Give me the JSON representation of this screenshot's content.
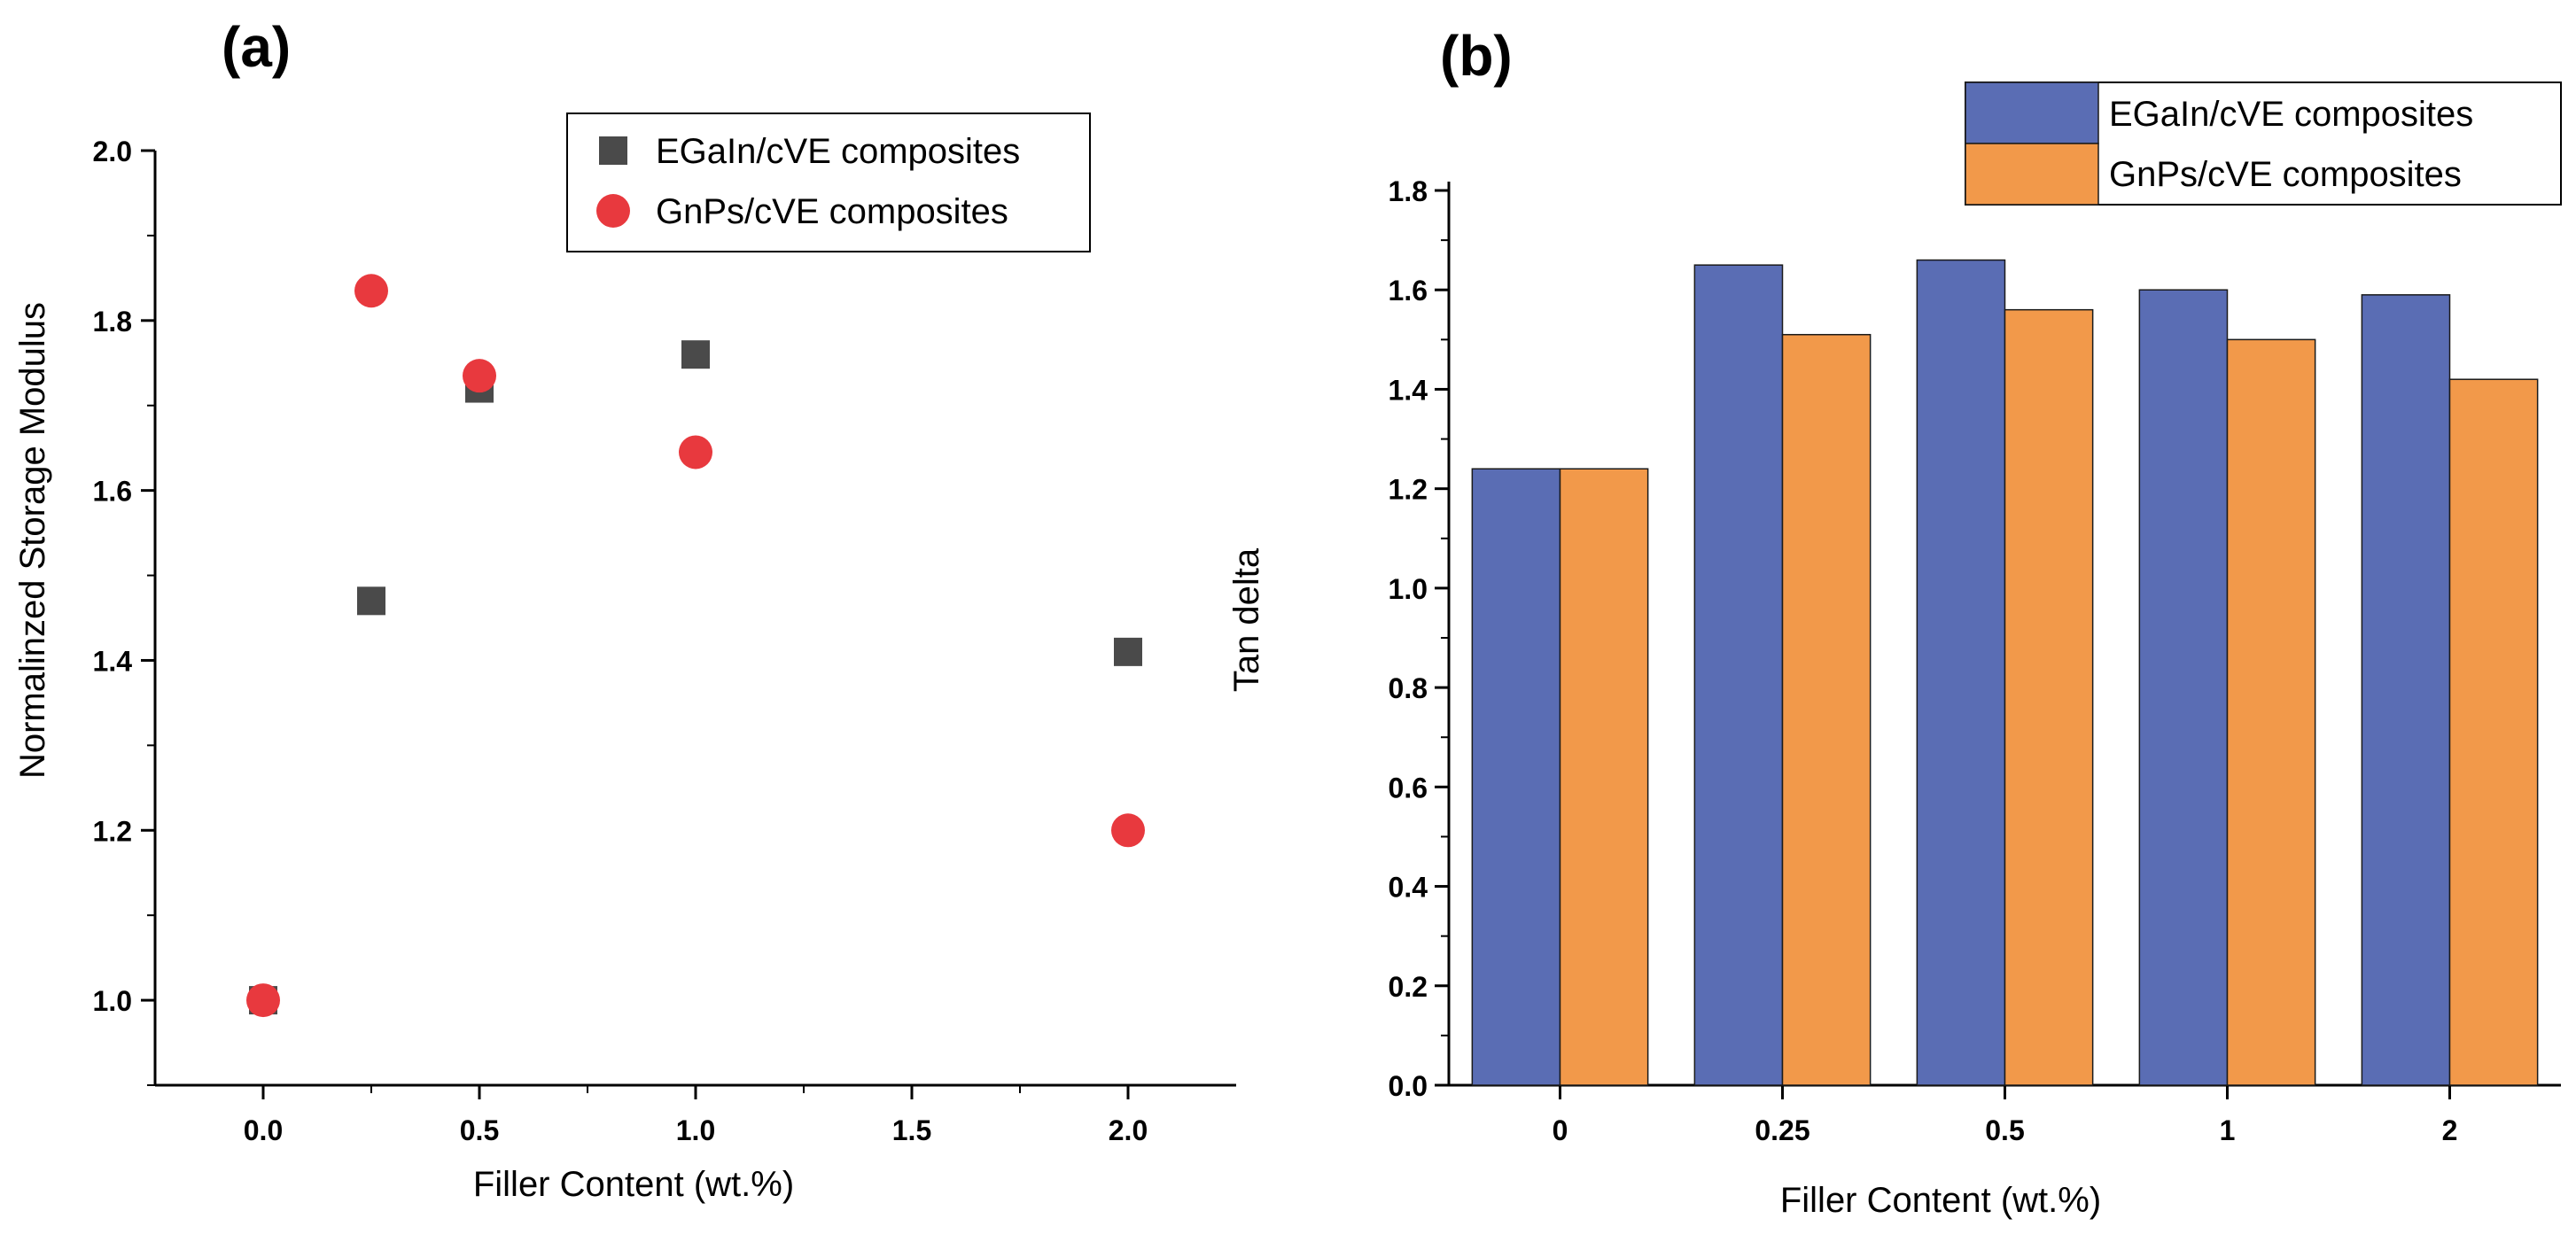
{
  "chart_data": [
    {
      "panel_label": "(a)",
      "type": "scatter",
      "xlabel": "Filler Content (wt.%)",
      "ylabel": "Normalinzed Storage Modulus",
      "xlim": [
        -0.25,
        2.25
      ],
      "ylim": [
        0.9,
        2.0
      ],
      "xticks": [
        0.0,
        0.5,
        1.0,
        1.5,
        2.0
      ],
      "xtick_labels": [
        "0.0",
        "0.5",
        "1.0",
        "1.5",
        "2.0"
      ],
      "yticks": [
        1.0,
        1.2,
        1.4,
        1.6,
        1.8,
        2.0
      ],
      "ytick_labels": [
        "1.0",
        "1.2",
        "1.4",
        "1.6",
        "1.8",
        "2.0"
      ],
      "legend_position": "top-right",
      "series": [
        {
          "name": "EGaIn/cVE composites",
          "marker": "square",
          "color": "#4a4a4a",
          "x": [
            0.0,
            0.25,
            0.5,
            1.0,
            2.0
          ],
          "y": [
            1.0,
            1.47,
            1.72,
            1.76,
            1.41
          ]
        },
        {
          "name": "GnPs/cVE composites",
          "marker": "circle",
          "color": "#e8393e",
          "x": [
            0.0,
            0.25,
            0.5,
            1.0,
            2.0
          ],
          "y": [
            1.0,
            1.835,
            1.735,
            1.645,
            1.2
          ]
        }
      ]
    },
    {
      "panel_label": "(b)",
      "type": "bar",
      "xlabel": "Filler Content (wt.%)",
      "ylabel": "Tan delta",
      "categories": [
        "0",
        "0.25",
        "0.5",
        "1",
        "2"
      ],
      "ylim": [
        0.0,
        1.8
      ],
      "yticks": [
        0.0,
        0.2,
        0.4,
        0.6,
        0.8,
        1.0,
        1.2,
        1.4,
        1.6,
        1.8
      ],
      "ytick_labels": [
        "0.0",
        "0.2",
        "0.4",
        "0.6",
        "0.8",
        "1.0",
        "1.2",
        "1.4",
        "1.6",
        "1.8"
      ],
      "legend_position": "top-right",
      "series": [
        {
          "name": "EGaIn/cVE composites",
          "color": "#5a6db4",
          "values": [
            1.24,
            1.65,
            1.66,
            1.6,
            1.59
          ]
        },
        {
          "name": "GnPs/cVE composites",
          "color": "#f2994a",
          "values": [
            1.24,
            1.51,
            1.56,
            1.5,
            1.42
          ]
        }
      ]
    }
  ]
}
